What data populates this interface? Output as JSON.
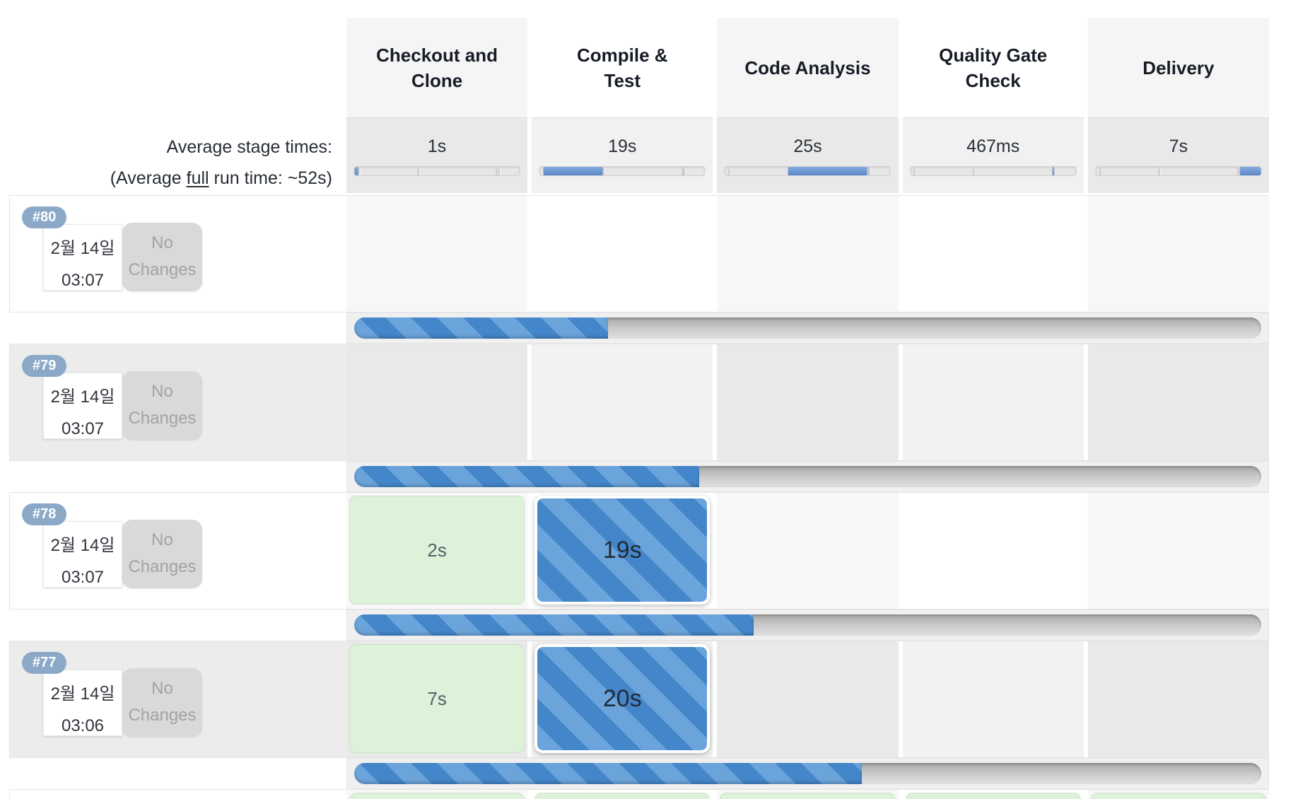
{
  "colors": {
    "accent_blue": "#4486ca",
    "accent_blue_stripe": "#6ba4da",
    "success_green": "#ddf2d9",
    "build_pill_blue": "#8ba9c7",
    "track_gray": "#c9c9c9"
  },
  "header": {
    "columns": [
      "Checkout and\nClone",
      "Compile &\nTest",
      "Code Analysis",
      "Quality Gate\nCheck",
      "Delivery"
    ]
  },
  "averages": {
    "label_line1": "Average stage times:",
    "label_line2_prefix": "(Average ",
    "label_line2_underlined": "full",
    "label_line2_suffix": " run time: ~52s)",
    "stage_times": [
      "1s",
      "19s",
      "25s",
      "467ms",
      "7s"
    ],
    "mini_bars": [
      {
        "start": 0,
        "end": 2
      },
      {
        "start": 2,
        "end": 38
      },
      {
        "start": 38,
        "end": 86
      },
      {
        "start": 86,
        "end": 87
      },
      {
        "start": 87,
        "end": 100
      }
    ],
    "dividers": [
      2,
      38,
      86,
      87
    ]
  },
  "builds": [
    {
      "id": "#80",
      "date": "2월 14일",
      "time": "03:07",
      "changes": "No Changes",
      "progress_percent": 28,
      "stages": []
    },
    {
      "id": "#79",
      "date": "2월 14일",
      "time": "03:07",
      "changes": "No Changes",
      "progress_percent": 38,
      "stages": []
    },
    {
      "id": "#78",
      "date": "2월 14일",
      "time": "03:07",
      "changes": "No Changes",
      "progress_percent": 44,
      "stages": [
        {
          "column": 1,
          "status": "success",
          "duration": "2s"
        },
        {
          "column": 2,
          "status": "running",
          "duration": "19s"
        }
      ]
    },
    {
      "id": "#77",
      "date": "2월 14일",
      "time": "03:06",
      "changes": "No Changes",
      "progress_percent": 56,
      "stages": [
        {
          "column": 1,
          "status": "success",
          "duration": "7s"
        },
        {
          "column": 2,
          "status": "running",
          "duration": "20s"
        }
      ]
    }
  ],
  "partial_next_row": {
    "visible_stage_cells": 5,
    "status": "success"
  }
}
